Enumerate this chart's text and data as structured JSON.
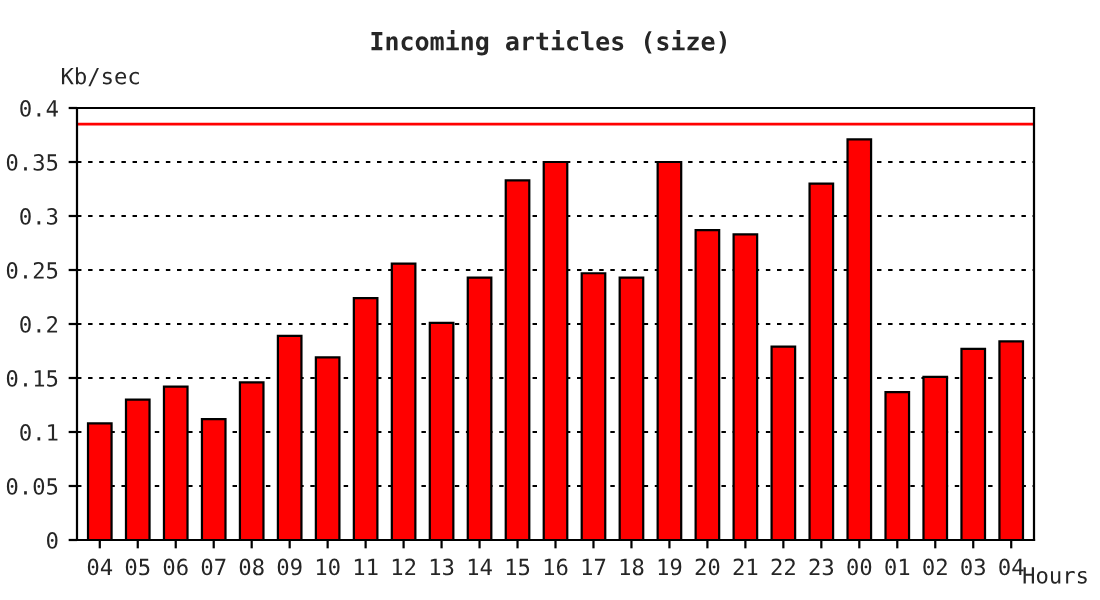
{
  "chart_data": {
    "type": "bar",
    "title": "Incoming articles (size)",
    "ylabel": "Kb/sec",
    "xlabel": "Hours",
    "categories": [
      "04",
      "05",
      "06",
      "07",
      "08",
      "09",
      "10",
      "11",
      "12",
      "13",
      "14",
      "15",
      "16",
      "17",
      "18",
      "19",
      "20",
      "21",
      "22",
      "23",
      "00",
      "01",
      "02",
      "03",
      "04"
    ],
    "values": [
      0.108,
      0.13,
      0.142,
      0.112,
      0.146,
      0.189,
      0.169,
      0.224,
      0.256,
      0.201,
      0.243,
      0.333,
      0.35,
      0.247,
      0.243,
      0.35,
      0.287,
      0.283,
      0.179,
      0.33,
      0.371,
      0.137,
      0.151,
      0.177,
      0.184
    ],
    "color": "#ff0000",
    "ylim": [
      0,
      0.4
    ],
    "yticks": [
      0,
      0.05,
      0.1,
      0.15,
      0.2,
      0.25,
      0.3,
      0.35,
      0.4
    ],
    "grid": "y",
    "ref_lines": [
      {
        "axis": "y",
        "value": 0.385,
        "color": "#ff0000"
      }
    ]
  }
}
